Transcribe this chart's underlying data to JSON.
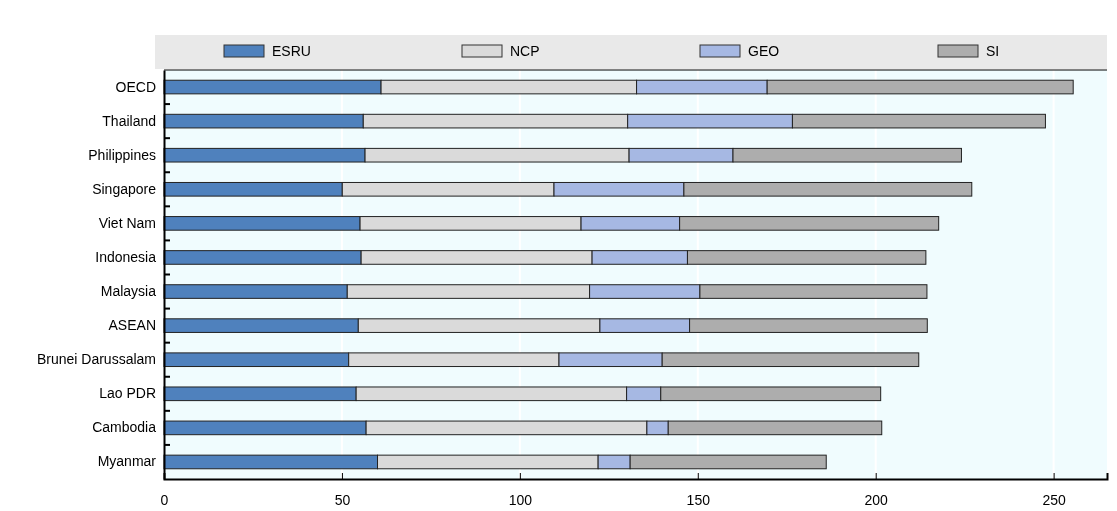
{
  "chart_data": {
    "type": "bar",
    "orientation": "horizontal",
    "stacked": true,
    "categories": [
      "OECD",
      "Thailand",
      "Philippines",
      "Singapore",
      "Viet Nam",
      "Indonesia",
      "Malaysia",
      "ASEAN",
      "Brunei Darussalam",
      "Lao PDR",
      "Cambodia",
      "Myanmar"
    ],
    "series": [
      {
        "name": "ESRU",
        "color": "#4f81bd",
        "values": [
          61.0,
          56.0,
          56.5,
          50.1,
          55.1,
          55.4,
          51.5,
          54.6,
          51.9,
          54.0,
          56.8,
          60.0
        ]
      },
      {
        "name": "NCP",
        "color": "#dadada",
        "values": [
          71.8,
          74.3,
          74.2,
          59.5,
          62.1,
          64.9,
          68.1,
          67.9,
          59.1,
          76.0,
          78.9,
          62.0
        ]
      },
      {
        "name": "GEO",
        "color": "#a6b8e3",
        "values": [
          36.7,
          46.3,
          29.2,
          36.5,
          27.7,
          26.8,
          31.0,
          25.2,
          29.0,
          9.6,
          6.0,
          9.0
        ]
      },
      {
        "name": "SI",
        "color": "#adadad",
        "values": [
          86.0,
          71.1,
          64.2,
          80.9,
          72.8,
          67.0,
          63.8,
          66.8,
          72.1,
          61.8,
          60.0,
          55.1
        ]
      }
    ],
    "xlim": [
      0,
      265
    ],
    "xticks": [
      0,
      50,
      100,
      150,
      200,
      250
    ],
    "grid": "x",
    "legend": "top"
  }
}
